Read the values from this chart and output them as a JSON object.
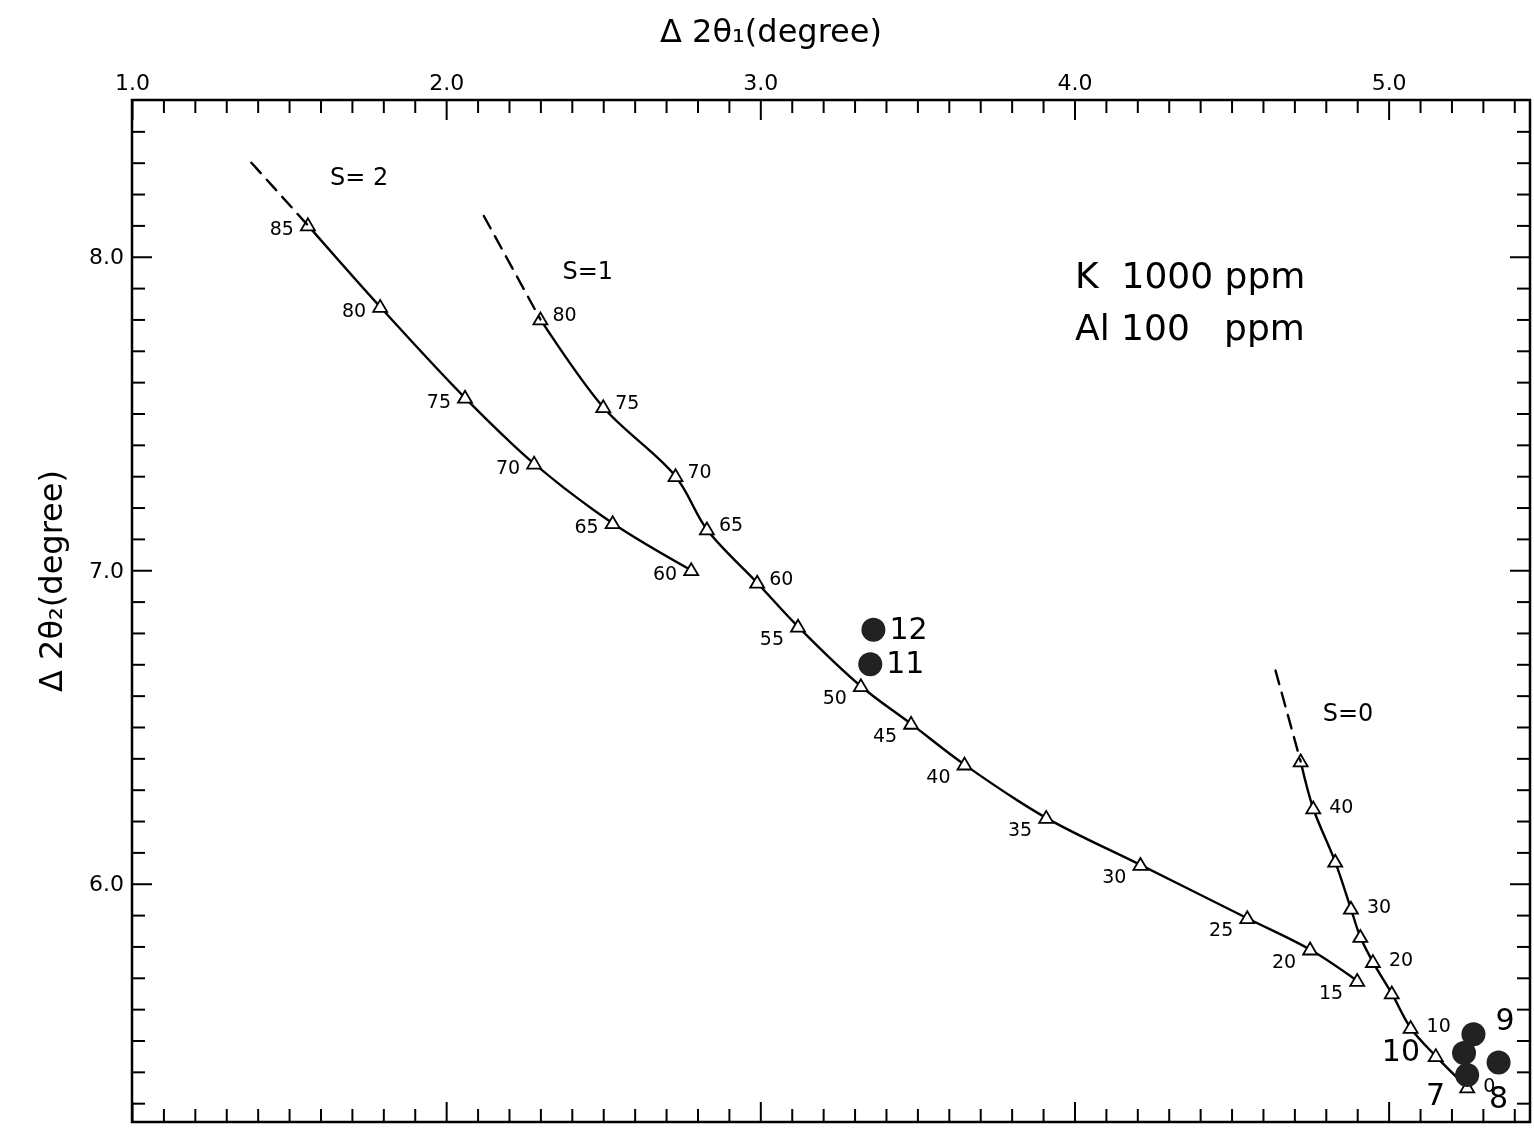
{
  "chart_data": {
    "type": "line",
    "xlabel": "Δ 2θ₁(degree)",
    "ylabel": "Δ 2θ₂(degree)",
    "xlim": [
      1.0,
      5.45
    ],
    "ylim": [
      5.24,
      8.5
    ],
    "xticks": [
      {
        "value": 1,
        "label": "1.0"
      },
      {
        "value": 1.1,
        "label": null
      },
      {
        "value": 1.2,
        "label": null
      },
      {
        "value": 1.3,
        "label": null
      },
      {
        "value": 1.4,
        "label": null
      },
      {
        "value": 1.5,
        "label": null
      },
      {
        "value": 1.6,
        "label": null
      },
      {
        "value": 1.7,
        "label": null
      },
      {
        "value": 1.8,
        "label": null
      },
      {
        "value": 1.9,
        "label": null
      },
      {
        "value": 2,
        "label": "2.0"
      },
      {
        "value": 2.1,
        "label": null
      },
      {
        "value": 2.2,
        "label": null
      },
      {
        "value": 2.3,
        "label": null
      },
      {
        "value": 2.4,
        "label": null
      },
      {
        "value": 2.5,
        "label": null
      },
      {
        "value": 2.6,
        "label": null
      },
      {
        "value": 2.7,
        "label": null
      },
      {
        "value": 2.8,
        "label": null
      },
      {
        "value": 2.9,
        "label": null
      },
      {
        "value": 3,
        "label": "3.0"
      },
      {
        "value": 3.1,
        "label": null
      },
      {
        "value": 3.2,
        "label": null
      },
      {
        "value": 3.3,
        "label": null
      },
      {
        "value": 3.4,
        "label": null
      },
      {
        "value": 3.5,
        "label": null
      },
      {
        "value": 3.6,
        "label": null
      },
      {
        "value": 3.7,
        "label": null
      },
      {
        "value": 3.8,
        "label": null
      },
      {
        "value": 3.9,
        "label": null
      },
      {
        "value": 4,
        "label": "4.0"
      },
      {
        "value": 4.1,
        "label": null
      },
      {
        "value": 4.2,
        "label": null
      },
      {
        "value": 4.3,
        "label": null
      },
      {
        "value": 4.4,
        "label": null
      },
      {
        "value": 4.5,
        "label": null
      },
      {
        "value": 4.6,
        "label": null
      },
      {
        "value": 4.7,
        "label": null
      },
      {
        "value": 4.8,
        "label": null
      },
      {
        "value": 4.9,
        "label": null
      },
      {
        "value": 5,
        "label": "5.0"
      },
      {
        "value": 5.1,
        "label": null
      },
      {
        "value": 5.2,
        "label": null
      },
      {
        "value": 5.3,
        "label": null
      },
      {
        "value": 5.4,
        "label": null
      }
    ],
    "yticks": [
      {
        "value": 5.3,
        "label": null
      },
      {
        "value": 5.4,
        "label": null
      },
      {
        "value": 5.5,
        "label": null
      },
      {
        "value": 5.6,
        "label": null
      },
      {
        "value": 5.7,
        "label": null
      },
      {
        "value": 5.8,
        "label": null
      },
      {
        "value": 5.9,
        "label": null
      },
      {
        "value": 6,
        "label": "6.0"
      },
      {
        "value": 6.1,
        "label": null
      },
      {
        "value": 6.2,
        "label": null
      },
      {
        "value": 6.3,
        "label": null
      },
      {
        "value": 6.4,
        "label": null
      },
      {
        "value": 6.5,
        "label": null
      },
      {
        "value": 6.6,
        "label": null
      },
      {
        "value": 6.7,
        "label": null
      },
      {
        "value": 6.8,
        "label": null
      },
      {
        "value": 6.9,
        "label": null
      },
      {
        "value": 7,
        "label": "7.0"
      },
      {
        "value": 7.1,
        "label": null
      },
      {
        "value": 7.2,
        "label": null
      },
      {
        "value": 7.3,
        "label": null
      },
      {
        "value": 7.4,
        "label": null
      },
      {
        "value": 7.5,
        "label": null
      },
      {
        "value": 7.6,
        "label": null
      },
      {
        "value": 7.7,
        "label": null
      },
      {
        "value": 7.8,
        "label": null
      },
      {
        "value": 7.9,
        "label": null
      },
      {
        "value": 8,
        "label": "8.0"
      },
      {
        "value": 8.1,
        "label": null
      },
      {
        "value": 8.2,
        "label": null
      },
      {
        "value": 8.3,
        "label": null
      },
      {
        "value": 8.4,
        "label": null
      }
    ],
    "grid": false,
    "legend": false,
    "series": [
      {
        "name": "S= 2",
        "color": "#000000",
        "marker": "triangle",
        "line_style": "solid",
        "x": [
          1.56,
          1.79,
          2.06,
          2.28,
          2.53,
          2.78
        ],
        "values": [
          8.1,
          7.84,
          7.55,
          7.34,
          7.15,
          7.0
        ]
      },
      {
        "name": "S=1",
        "color": "#000000",
        "marker": "triangle",
        "line_style": "solid",
        "x": [
          2.3,
          2.5,
          2.73,
          2.83,
          2.99,
          3.12,
          3.32,
          3.48,
          3.65,
          3.91,
          4.21,
          4.55,
          4.75,
          4.9
        ],
        "values": [
          7.8,
          7.52,
          7.3,
          7.13,
          6.96,
          6.82,
          6.63,
          6.51,
          6.38,
          6.21,
          6.06,
          5.89,
          5.79,
          5.69
        ]
      },
      {
        "name": "S=0",
        "color": "#000000",
        "marker": "triangle",
        "line_style": "solid",
        "x": [
          4.72,
          4.76,
          4.83,
          4.88,
          4.91,
          4.95,
          5.01,
          5.07,
          5.15,
          5.25
        ],
        "values": [
          6.39,
          6.24,
          6.07,
          5.92,
          5.83,
          5.75,
          5.65,
          5.54,
          5.45,
          5.35
        ]
      },
      {
        "color": "#000000",
        "marker": "none",
        "line_style": "dashed",
        "x": [
          1.38,
          1.56
        ],
        "values": [
          8.3,
          8.1
        ]
      },
      {
        "color": "#000000",
        "marker": "none",
        "line_style": "dashed",
        "x": [
          2.12,
          2.3
        ],
        "values": [
          8.13,
          7.8
        ]
      },
      {
        "color": "#000000",
        "marker": "none",
        "line_style": "dashed",
        "x": [
          4.64,
          4.72
        ],
        "values": [
          6.68,
          6.39
        ]
      },
      {
        "type": "scatter",
        "color": "#222222",
        "marker": "circle",
        "x": [
          3.36,
          3.35,
          5.27,
          5.24,
          5.25,
          5.35
        ],
        "values": [
          6.81,
          6.7,
          5.52,
          5.46,
          5.39,
          5.43
        ]
      }
    ],
    "annotations": [
      "K  1000 ppm",
      "Al 100   ppm",
      {
        "text": "85",
        "x": 1.56,
        "y": 8.1
      },
      {
        "text": "80",
        "x": 1.79,
        "y": 7.84
      },
      {
        "text": "75",
        "x": 2.06,
        "y": 7.55
      },
      {
        "text": "70",
        "x": 2.28,
        "y": 7.34
      },
      {
        "text": "65",
        "x": 2.53,
        "y": 7.15
      },
      {
        "text": "60",
        "x": 2.78,
        "y": 7.0
      },
      {
        "text": "80",
        "x": 2.3,
        "y": 7.8
      },
      {
        "text": "75",
        "x": 2.5,
        "y": 7.52
      },
      {
        "text": "70",
        "x": 2.73,
        "y": 7.3
      },
      {
        "text": "65",
        "x": 2.83,
        "y": 7.13
      },
      {
        "text": "60",
        "x": 2.99,
        "y": 6.96
      },
      {
        "text": "55",
        "x": 3.12,
        "y": 6.82
      },
      {
        "text": "50",
        "x": 3.32,
        "y": 6.63
      },
      {
        "text": "45",
        "x": 3.48,
        "y": 6.51
      },
      {
        "text": "40",
        "x": 3.65,
        "y": 6.38
      },
      {
        "text": "35",
        "x": 3.91,
        "y": 6.21
      },
      {
        "text": "30",
        "x": 4.21,
        "y": 6.06
      },
      {
        "text": "25",
        "x": 4.55,
        "y": 5.89
      },
      {
        "text": "20",
        "x": 4.75,
        "y": 5.79
      },
      {
        "text": "15",
        "x": 4.9,
        "y": 5.69
      },
      {
        "text": "40",
        "x": 4.76,
        "y": 6.24
      },
      {
        "text": "30",
        "x": 4.88,
        "y": 5.92
      },
      {
        "text": "20",
        "x": 4.95,
        "y": 5.75
      },
      {
        "text": "10",
        "x": 5.07,
        "y": 5.54
      },
      {
        "text": "0",
        "x": 5.25,
        "y": 5.35
      },
      {
        "text": "12",
        "x": 3.36,
        "y": 6.81
      },
      {
        "text": "11",
        "x": 3.35,
        "y": 6.7
      },
      {
        "text": "9",
        "x": 5.27,
        "y": 5.52
      },
      {
        "text": "10",
        "x": 5.24,
        "y": 5.46
      },
      {
        "text": "7",
        "x": 5.25,
        "y": 5.39
      },
      {
        "text": "8",
        "x": 5.35,
        "y": 5.43
      }
    ]
  }
}
